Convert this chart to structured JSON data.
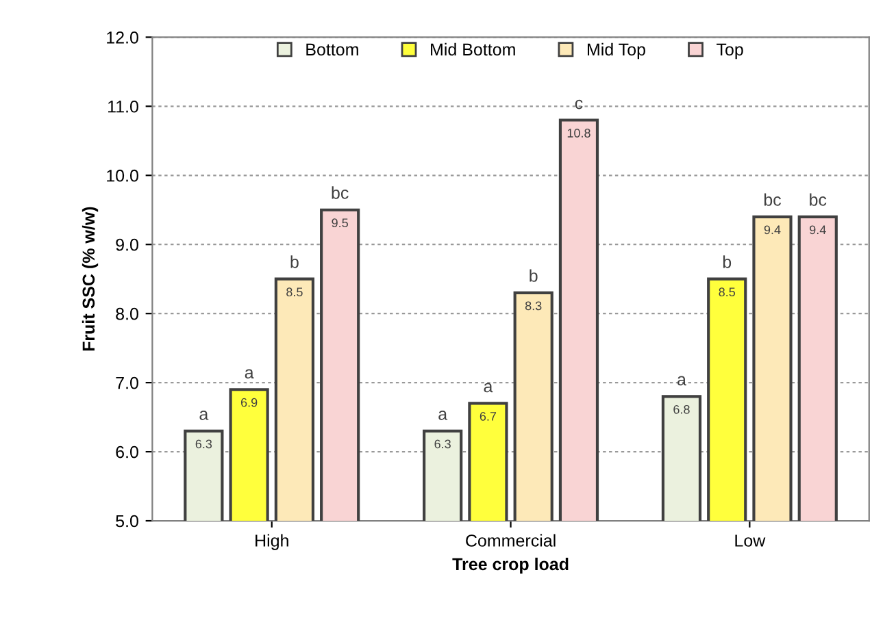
{
  "chart_data": {
    "type": "bar",
    "xlabel": "Tree crop load",
    "ylabel": "Fruit SSC (% w/w)",
    "categories": [
      "High",
      "Commercial",
      "Low"
    ],
    "series": [
      {
        "name": "Bottom",
        "color": "#ebf1de",
        "values": [
          6.3,
          6.3,
          6.8
        ]
      },
      {
        "name": "Mid Bottom",
        "color": "#ffff3c",
        "values": [
          6.9,
          6.7,
          8.5
        ]
      },
      {
        "name": "Mid Top",
        "color": "#fde9b8",
        "values": [
          8.5,
          8.3,
          9.4
        ]
      },
      {
        "name": "Top",
        "color": "#f9d4d4",
        "values": [
          9.5,
          10.8,
          9.4
        ]
      }
    ],
    "ylim": [
      5.0,
      12.0
    ],
    "yticks": [
      {
        "value": 5.0,
        "label": "5.0"
      },
      {
        "value": 6.0,
        "label": "6.0"
      },
      {
        "value": 7.0,
        "label": "7.0"
      },
      {
        "value": 8.0,
        "label": "8.0"
      },
      {
        "value": 9.0,
        "label": "9.0"
      },
      {
        "value": 10.0,
        "label": "10.0"
      },
      {
        "value": 11.0,
        "label": "11.0"
      },
      {
        "value": 12.0,
        "label": "12.0"
      }
    ],
    "grid": "y",
    "legend": "top",
    "data_labels": true,
    "annotations": [
      "a",
      "a",
      "b",
      "bc",
      "a",
      "a",
      "b",
      "c",
      "a",
      "b",
      "bc",
      "bc"
    ]
  }
}
